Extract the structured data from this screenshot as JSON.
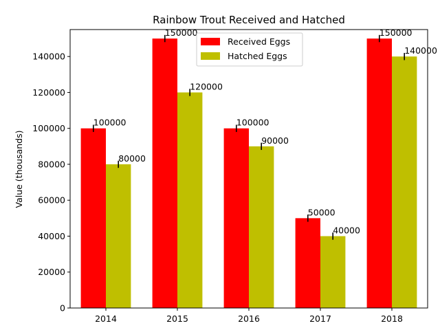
{
  "chart_data": {
    "type": "bar",
    "title": "Rainbow Trout Received and Hatched",
    "xlabel": "",
    "ylabel": "Value (thousands)",
    "categories": [
      "2014",
      "2015",
      "2016",
      "2017",
      "2018"
    ],
    "series": [
      {
        "name": "Received Eggs",
        "color": "#ff0000",
        "values": [
          100000,
          150000,
          100000,
          50000,
          150000
        ],
        "labels": [
          "100000",
          "150000",
          "100000",
          "50000",
          "150000"
        ]
      },
      {
        "name": "Hatched Eggs",
        "color": "#bfbf00",
        "values": [
          80000,
          120000,
          90000,
          40000,
          140000
        ],
        "labels": [
          "80000",
          "120000",
          "90000",
          "40000",
          "140000"
        ]
      }
    ],
    "ylim": [
      0,
      155000
    ],
    "yticks": [
      0,
      20000,
      40000,
      60000,
      80000,
      100000,
      120000,
      140000
    ],
    "ytick_labels": [
      "0",
      "20000",
      "40000",
      "60000",
      "80000",
      "100000",
      "120000",
      "140000"
    ],
    "error_bars": true,
    "grid": false,
    "legend_position": "top-center"
  }
}
